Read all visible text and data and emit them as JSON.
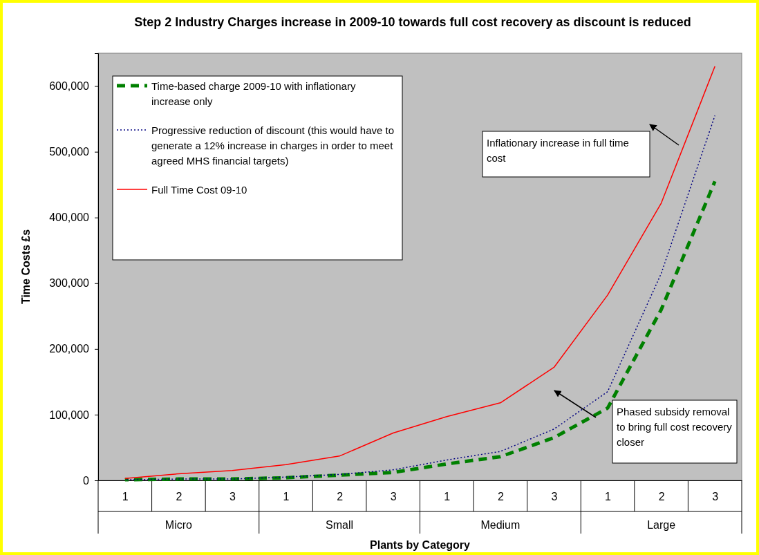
{
  "chart_data": {
    "type": "line",
    "title": "Step 2 Industry Charges increase in 2009-10 towards full cost recovery as discount is reduced",
    "xlabel": "Plants by Category",
    "ylabel": "Time Costs £s",
    "categories": [
      "1",
      "2",
      "3",
      "1",
      "2",
      "3",
      "1",
      "2",
      "3",
      "1",
      "2",
      "3"
    ],
    "series": [
      {
        "name": "Time-based charge 2009-10 with inflationary increase only",
        "color": "#008000",
        "line_style": "dashed",
        "values": [
          1000,
          2000,
          2000,
          4000,
          8000,
          12000,
          25000,
          36000,
          65000,
          110000,
          260000,
          455000
        ]
      },
      {
        "name": "Progressive reduction of discount (this would have to generate a 12% increase in charges in order to meet agreed MHS financial targets)",
        "color": "#000080",
        "line_style": "dotted",
        "values": [
          1000,
          2000,
          2000,
          5000,
          9000,
          16000,
          31000,
          44000,
          78000,
          135000,
          315000,
          555000
        ]
      },
      {
        "name": "Full Time Cost 09-10",
        "color": "#ff0000",
        "line_style": "solid",
        "values": [
          3000,
          10000,
          15000,
          24000,
          37000,
          72000,
          97000,
          118000,
          172000,
          282000,
          422000,
          630000
        ]
      }
    ],
    "ylim": [
      0,
      650000
    ],
    "yticks": [
      {
        "value": 0,
        "label": "0"
      },
      {
        "value": 100000,
        "label": "100,000"
      },
      {
        "value": 200000,
        "label": "200,000"
      },
      {
        "value": 300000,
        "label": "300,000"
      },
      {
        "value": 400000,
        "label": "400,000"
      },
      {
        "value": 500000,
        "label": "500,000"
      },
      {
        "value": 600000,
        "label": "600,000"
      }
    ],
    "grid": false,
    "legend": "top left",
    "annotations": [
      "Inflationary increase in full time cost",
      "Phased subsidy removal to bring full cost recovery closer",
      "Micro",
      "Small",
      "Medium",
      "Large"
    ]
  }
}
